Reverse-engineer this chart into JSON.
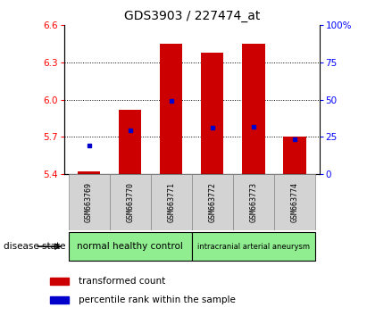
{
  "title": "GDS3903 / 227474_at",
  "samples": [
    "GSM663769",
    "GSM663770",
    "GSM663771",
    "GSM663772",
    "GSM663773",
    "GSM663774"
  ],
  "bar_values": [
    5.42,
    5.92,
    6.45,
    6.38,
    6.45,
    5.7
  ],
  "bar_bottom": 5.4,
  "percentile_values": [
    5.63,
    5.75,
    5.99,
    5.77,
    5.78,
    5.68
  ],
  "ylim_left": [
    5.4,
    6.6
  ],
  "ylim_right": [
    0,
    100
  ],
  "yticks_left": [
    5.4,
    5.7,
    6.0,
    6.3,
    6.6
  ],
  "yticks_right": [
    0,
    25,
    50,
    75,
    100
  ],
  "bar_color": "#cc0000",
  "dot_color": "#0000cc",
  "title_fontsize": 10,
  "group1_label": "normal healthy control",
  "group2_label": "intracranial arterial aneurysm",
  "group_color": "#90ee90",
  "sample_box_color": "#d3d3d3",
  "disease_state_label": "disease state",
  "legend_red_label": "transformed count",
  "legend_blue_label": "percentile rank within the sample",
  "background_color": "#ffffff"
}
